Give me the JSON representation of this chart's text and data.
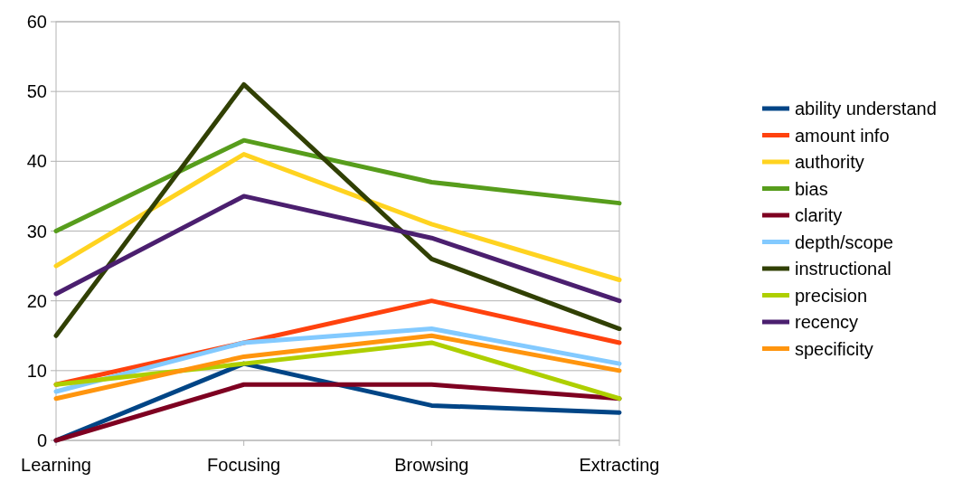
{
  "chart_data": {
    "type": "line",
    "categories": [
      "Learning",
      "Focusing",
      "Browsing",
      "Extracting"
    ],
    "ylim": [
      0,
      60
    ],
    "yticks": [
      0,
      10,
      20,
      30,
      40,
      50,
      60
    ],
    "grid": "y",
    "legend": "right",
    "marker": "none",
    "line_style": "solid",
    "series": [
      {
        "name": "ability understand",
        "color": "#004586",
        "values": [
          0,
          11,
          5,
          4
        ]
      },
      {
        "name": "amount info",
        "color": "#ff420e",
        "values": [
          8,
          14,
          20,
          14
        ]
      },
      {
        "name": "authority",
        "color": "#ffd320",
        "values": [
          25,
          41,
          31,
          23
        ]
      },
      {
        "name": "bias",
        "color": "#579d1c",
        "values": [
          30,
          43,
          37,
          34
        ]
      },
      {
        "name": "clarity",
        "color": "#7e0021",
        "values": [
          0,
          8,
          8,
          6
        ]
      },
      {
        "name": "depth/scope",
        "color": "#83caff",
        "values": [
          7,
          14,
          16,
          11
        ]
      },
      {
        "name": "instructional",
        "color": "#314004",
        "values": [
          15,
          51,
          26,
          16
        ]
      },
      {
        "name": "precision",
        "color": "#aecf00",
        "values": [
          8,
          11,
          14,
          6
        ]
      },
      {
        "name": "recency",
        "color": "#4b1f6f",
        "values": [
          21,
          35,
          29,
          20
        ]
      },
      {
        "name": "specificity",
        "color": "#ff950e",
        "values": [
          6,
          12,
          15,
          10
        ]
      }
    ]
  }
}
